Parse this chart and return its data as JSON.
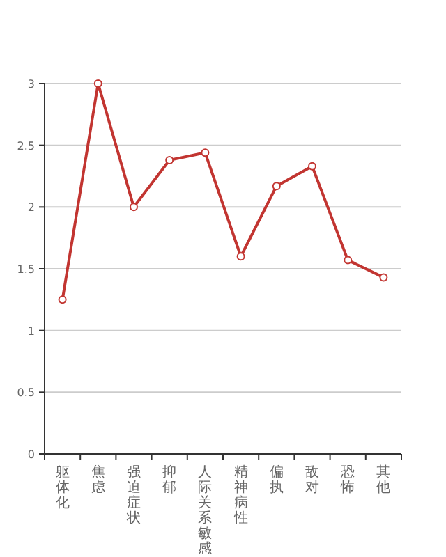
{
  "chart_data": {
    "type": "line",
    "categories": [
      "躯体化",
      "焦虑",
      "强迫症状",
      "抑郁",
      "人际关系敏感",
      "精神病性",
      "偏执",
      "敌对",
      "恐怖",
      "其他"
    ],
    "values": [
      1.25,
      3.0,
      2.0,
      2.38,
      2.44,
      1.6,
      2.17,
      2.33,
      1.57,
      1.43
    ],
    "color": "#c23531",
    "ylim": [
      0,
      3
    ],
    "yticks": [
      0,
      0.5,
      1,
      1.5,
      2,
      2.5,
      3
    ],
    "grid": "y",
    "marker": "circle"
  }
}
